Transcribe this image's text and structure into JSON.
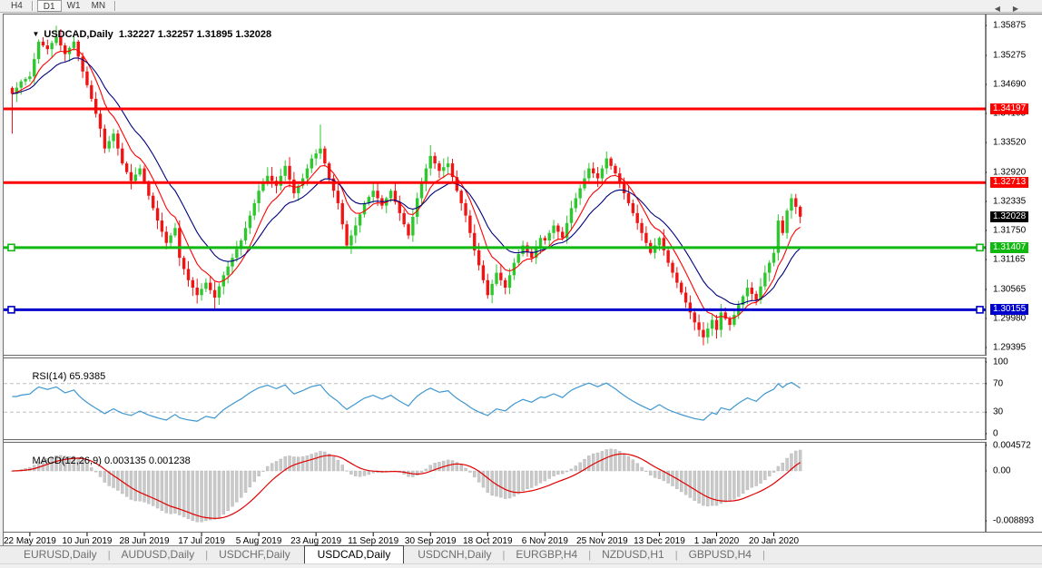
{
  "toolbar": {
    "buttons": [
      {
        "label": "H4",
        "active": false
      },
      {
        "label": "D1",
        "active": true
      },
      {
        "label": "W1",
        "active": false
      },
      {
        "label": "MN",
        "active": false
      }
    ]
  },
  "quote": {
    "symbol": "USDCAD,Daily",
    "open": "1.32227",
    "high": "1.32257",
    "low": "1.31895",
    "close": "1.32028"
  },
  "indicators": {
    "rsi_label": "RSI(14)",
    "rsi_value": "65.9385",
    "macd_label": "MACD(12,26,9)",
    "macd_main": "0.003135",
    "macd_signal": "0.001238"
  },
  "tabs": {
    "items": [
      "EURUSD,Daily",
      "AUDUSD,Daily",
      "USDCHF,Daily",
      "USDCAD,Daily",
      "USDCNH,Daily",
      "EURGBP,H4",
      "NZDUSD,H1",
      "GBPUSD,H4"
    ],
    "active_index": 3,
    "scroll_arrows": [
      "left",
      "right"
    ]
  },
  "colors": {
    "bull": "#2ec82e",
    "bear": "#f01515",
    "ma_fast": "#ff0000",
    "ma_slow": "#00007d",
    "level_red": "#fe0000",
    "level_green": "#12b812",
    "level_blue": "#0000cc",
    "current_price_bg": "#000000",
    "rsi_line": "#3e97d1",
    "macd_bar": "#c9c9c9",
    "macd_signal": "#e00000",
    "guide_dash": "#bdbdbd"
  },
  "chart_data": {
    "type": "candlestick",
    "symbol": "USDCAD",
    "timeframe": "Daily",
    "last_bar": {
      "open": 1.32227,
      "high": 1.32257,
      "low": 1.31895,
      "close": 1.32028
    },
    "visible_price_range": {
      "top": 1.361,
      "bottom": 1.2927
    },
    "y_axis_ticks": [
      "1.35875",
      "1.35275",
      "1.34690",
      "1.34105",
      "1.33520",
      "1.32920",
      "1.32335",
      "1.31750",
      "1.31165",
      "1.30565",
      "1.29980",
      "1.29395"
    ],
    "x_axis_ticks": [
      "22 May 2019",
      "10 Jun 2019",
      "28 Jun 2019",
      "17 Jul 2019",
      "5 Aug 2019",
      "23 Aug 2019",
      "11 Sep 2019",
      "30 Sep 2019",
      "18 Oct 2019",
      "6 Nov 2019",
      "25 Nov 2019",
      "13 Dec 2019",
      "1 Jan 2020",
      "20 Jan 2020"
    ],
    "current_price": 1.32028,
    "horizontal_levels": [
      {
        "price": 1.34197,
        "color_key": "level_red",
        "handles": false
      },
      {
        "price": 1.32713,
        "color_key": "level_red",
        "handles": false
      },
      {
        "price": 1.31407,
        "color_key": "level_green",
        "handles": true
      },
      {
        "price": 1.30155,
        "color_key": "level_blue",
        "handles": true
      }
    ],
    "moving_averages": [
      {
        "period": 8,
        "color_key": "ma_fast"
      },
      {
        "period": 16,
        "color_key": "ma_slow"
      }
    ],
    "num_candles": 180,
    "candles_per_x_tick": 13,
    "first_x_tick_index": 4,
    "price_path_anchors": [
      [
        0,
        1.345
      ],
      [
        2,
        1.3475
      ],
      [
        4,
        1.3485
      ],
      [
        6,
        1.3555
      ],
      [
        8,
        1.354
      ],
      [
        10,
        1.3565
      ],
      [
        12,
        1.353
      ],
      [
        14,
        1.3555
      ],
      [
        16,
        1.3495
      ],
      [
        18,
        1.344
      ],
      [
        20,
        1.338
      ],
      [
        21,
        1.334
      ],
      [
        23,
        1.337
      ],
      [
        25,
        1.331
      ],
      [
        27,
        1.3275
      ],
      [
        29,
        1.33
      ],
      [
        31,
        1.3245
      ],
      [
        33,
        1.3195
      ],
      [
        35,
        1.315
      ],
      [
        37,
        1.318
      ],
      [
        38,
        1.312
      ],
      [
        40,
        1.3075
      ],
      [
        42,
        1.3045
      ],
      [
        44,
        1.307
      ],
      [
        46,
        1.304
      ],
      [
        48,
        1.3085
      ],
      [
        50,
        1.312
      ],
      [
        52,
        1.3155
      ],
      [
        54,
        1.3205
      ],
      [
        56,
        1.3255
      ],
      [
        58,
        1.3285
      ],
      [
        60,
        1.3265
      ],
      [
        62,
        1.3305
      ],
      [
        64,
        1.325
      ],
      [
        66,
        1.328
      ],
      [
        68,
        1.332
      ],
      [
        70,
        1.334
      ],
      [
        72,
        1.328
      ],
      [
        74,
        1.323
      ],
      [
        76,
        1.3145
      ],
      [
        78,
        1.3185
      ],
      [
        80,
        1.323
      ],
      [
        82,
        1.3255
      ],
      [
        84,
        1.3225
      ],
      [
        86,
        1.3255
      ],
      [
        88,
        1.321
      ],
      [
        90,
        1.3165
      ],
      [
        92,
        1.324
      ],
      [
        94,
        1.33
      ],
      [
        95,
        1.3325
      ],
      [
        97,
        1.3295
      ],
      [
        99,
        1.331
      ],
      [
        101,
        1.3255
      ],
      [
        103,
        1.3205
      ],
      [
        105,
        1.3135
      ],
      [
        107,
        1.3075
      ],
      [
        108,
        1.3045
      ],
      [
        110,
        1.309
      ],
      [
        112,
        1.306
      ],
      [
        114,
        1.311
      ],
      [
        116,
        1.3145
      ],
      [
        118,
        1.312
      ],
      [
        120,
        1.316
      ],
      [
        121,
        1.3155
      ],
      [
        123,
        1.3185
      ],
      [
        125,
        1.316
      ],
      [
        127,
        1.322
      ],
      [
        129,
        1.326
      ],
      [
        131,
        1.33
      ],
      [
        133,
        1.328
      ],
      [
        135,
        1.332
      ],
      [
        137,
        1.329
      ],
      [
        139,
        1.325
      ],
      [
        141,
        1.321
      ],
      [
        143,
        1.317
      ],
      [
        145,
        1.313
      ],
      [
        147,
        1.316
      ],
      [
        149,
        1.311
      ],
      [
        151,
        1.307
      ],
      [
        153,
        1.303
      ],
      [
        155,
        1.299
      ],
      [
        157,
        1.296
      ],
      [
        159,
        1.2995
      ],
      [
        160,
        1.2975
      ],
      [
        161,
        1.301
      ],
      [
        163,
        1.2985
      ],
      [
        165,
        1.3025
      ],
      [
        167,
        1.306
      ],
      [
        169,
        1.3035
      ],
      [
        171,
        1.309
      ],
      [
        173,
        1.313
      ],
      [
        174,
        1.3195
      ],
      [
        175,
        1.317
      ],
      [
        176,
        1.3215
      ],
      [
        177,
        1.324
      ],
      [
        178,
        1.32227
      ],
      [
        179,
        1.32028
      ]
    ],
    "wick_overrides": {
      "0": {
        "low": 1.337
      },
      "10": {
        "high": 1.3587
      },
      "42": {
        "low": 1.3028
      },
      "46": {
        "low": 1.3017
      },
      "70": {
        "high": 1.3388
      },
      "95": {
        "high": 1.3347
      },
      "108": {
        "low": 1.3038
      },
      "157": {
        "low": 1.2944
      },
      "177": {
        "high": 1.3249
      },
      "179": {
        "high": 1.32257,
        "low": 1.31895
      }
    },
    "rsi": {
      "label": "RSI(14)",
      "current": 65.9385,
      "period": 14,
      "guide_levels": [
        70,
        30
      ],
      "axis_ticks": [
        100,
        70,
        30,
        0
      ]
    },
    "macd": {
      "label": "MACD(12,26,9)",
      "main_current": 0.003135,
      "signal_current": 0.001238,
      "axis_ticks": [
        "0.004572",
        "0.00",
        "-0.008893"
      ]
    }
  }
}
